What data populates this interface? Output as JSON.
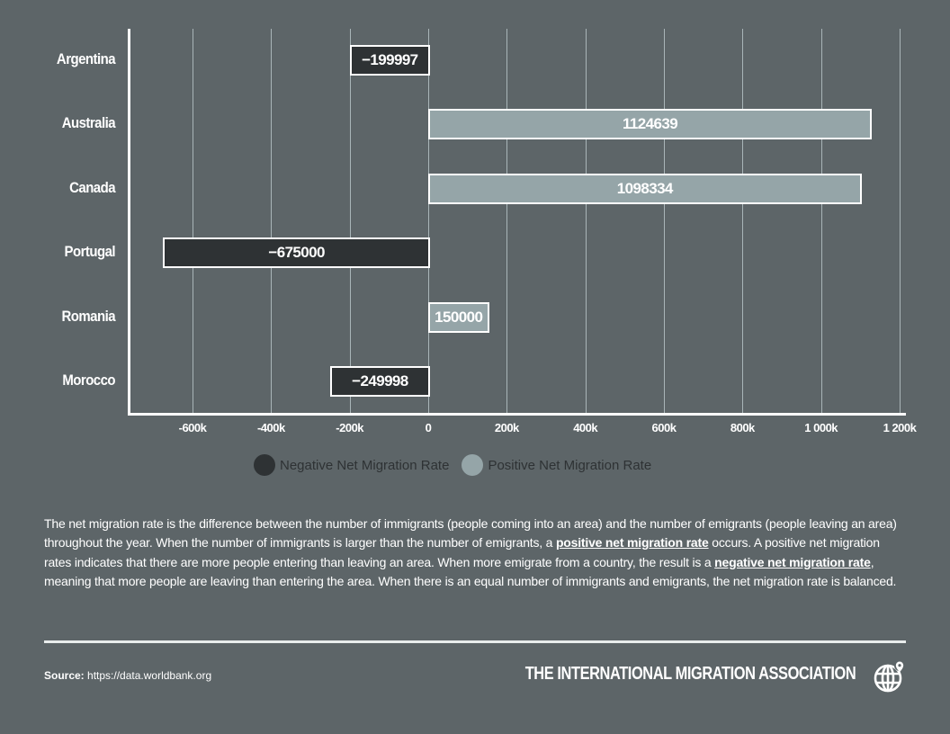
{
  "chart_data": {
    "type": "bar",
    "orientation": "horizontal",
    "title": "",
    "xlabel": "",
    "ylabel": "",
    "categories": [
      "Argentina",
      "Australia",
      "Canada",
      "Portugal",
      "Romania",
      "Morocco"
    ],
    "values": [
      -199997,
      1124639,
      1098334,
      -675000,
      150000,
      -249998
    ],
    "value_labels": [
      "-199997",
      "1124639",
      "1098334",
      "-675000",
      "150000",
      "-249998"
    ],
    "series": [
      {
        "name": "Negative Net Migration Rate",
        "color": "#2e3234",
        "categories": [
          "Argentina",
          "Portugal",
          "Morocco"
        ],
        "values": [
          -199997,
          -675000,
          -249998
        ]
      },
      {
        "name": "Positive Net Migration Rate",
        "color": "#95a5a8",
        "categories": [
          "Australia",
          "Canada",
          "Romania"
        ],
        "values": [
          1124639,
          1098334,
          150000
        ]
      }
    ],
    "xlim": [
      -770000,
      1220000
    ],
    "x_ticks": [
      -600000,
      -400000,
      -200000,
      0,
      200000,
      400000,
      600000,
      800000,
      1000000,
      1200000
    ],
    "x_tick_labels": [
      "-600k",
      "-400k",
      "-200k",
      "0",
      "200k",
      "400k",
      "600k",
      "800k",
      "1 000k",
      "1 200k"
    ],
    "grid": true,
    "legend_position": "bottom"
  },
  "legend": {
    "items": [
      {
        "label": "Negative Net Migration Rate",
        "color": "#2e3234"
      },
      {
        "label": "Positive Net Migration Rate",
        "color": "#95a5a8"
      }
    ]
  },
  "description": {
    "part1": "The net migration rate is the difference between the number of immigrants (people coming into an area) and the number of emigrants (people leaving an area) throughout the year. When the number of immigrants is larger than the number of emigrants, a ",
    "link1": "positive net migration rate",
    "part2": " occurs. A positive net migration rates indicates that there are more people entering than leaving an area. When more emigrate from a country, the result is a ",
    "link2": "negative net migration rate",
    "part3": ", meaning that more people are leaving than entering the area. When there is an equal number of immigrants and emigrants, the net migration rate is balanced."
  },
  "footer": {
    "source_label": "Source:",
    "source_url": "https://data.worldbank.org",
    "brand": "THE INTERNATIONAL MIGRATION ASSOCIATION",
    "brand_icon": "globe-pin-icon"
  },
  "colors": {
    "background": "#5d6568",
    "negative": "#2e3234",
    "positive": "#95a5a8",
    "grid": "#a9b5b8"
  }
}
